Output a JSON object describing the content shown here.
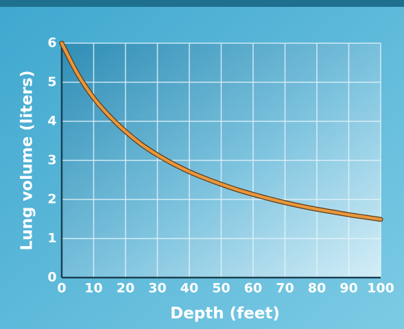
{
  "chart_data": {
    "type": "line",
    "x_label": "Depth (feet)",
    "y_label": "Lung volume (liters)",
    "x": [
      0,
      5,
      10,
      15,
      20,
      25,
      30,
      35,
      40,
      45,
      50,
      55,
      60,
      65,
      70,
      75,
      80,
      85,
      90,
      95,
      100
    ],
    "series": [
      {
        "color": "#e8973c",
        "values": [
          6.0,
          5.21,
          4.6,
          4.13,
          3.74,
          3.41,
          3.14,
          2.91,
          2.71,
          2.54,
          2.39,
          2.25,
          2.13,
          2.02,
          1.92,
          1.83,
          1.75,
          1.68,
          1.61,
          1.55,
          1.49
        ]
      }
    ],
    "xlim": [
      0,
      100
    ],
    "xticks": [
      0,
      10,
      20,
      30,
      40,
      50,
      60,
      70,
      80,
      90,
      100
    ],
    "ylim": [
      0,
      6
    ],
    "yticks": [
      0,
      1,
      2,
      3,
      4,
      5,
      6
    ],
    "grid": true
  }
}
